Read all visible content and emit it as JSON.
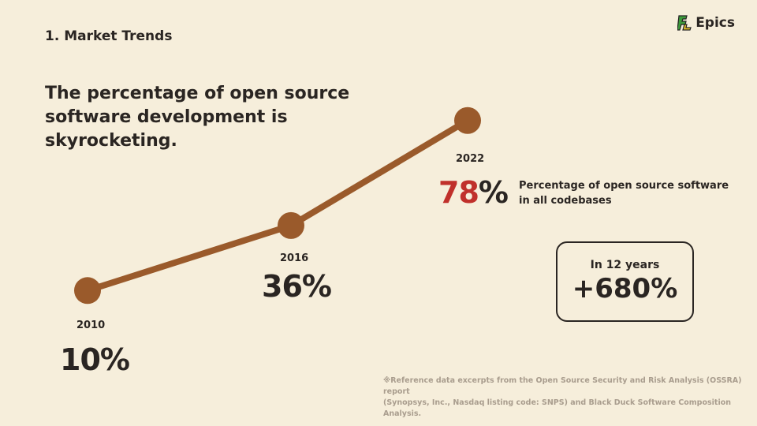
{
  "header": {
    "section": "1. Market Trends",
    "logo_text": "Epics"
  },
  "headline": "The percentage of open source software development is skyrocketing.",
  "colors": {
    "line": "#9a5a2b",
    "highlight": "#c0302b",
    "text": "#2a2522"
  },
  "chart_data": {
    "type": "line",
    "x": [
      2010,
      2016,
      2022
    ],
    "values": [
      10,
      36,
      78
    ],
    "labels": [
      "10%",
      "36%",
      "78%"
    ],
    "highlight_value": "78",
    "highlight_suffix": "%",
    "series_description": "Percentage of open source software in all codebases"
  },
  "description_lines": [
    "Percentage of open source software",
    "in all codebases"
  ],
  "growth_box": {
    "title": "In 12 years",
    "value": "+680%"
  },
  "footnote_lines": [
    "※Reference data excerpts from the Open Source Security and Risk Analysis (OSSRA) report",
    "(Synopsys, Inc., Nasdaq listing code: SNPS) and Black Duck Software Composition Analysis."
  ]
}
